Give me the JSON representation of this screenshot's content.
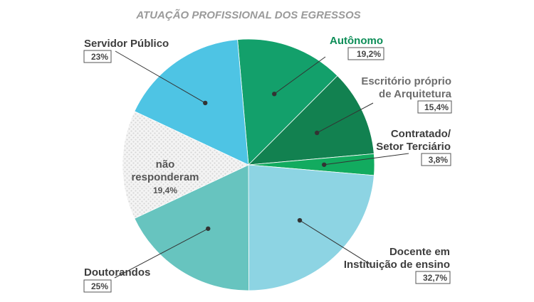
{
  "chart_data": {
    "type": "pie",
    "title": "ATUAÇÃO PROFISSIONAL DOS EGRESSOS",
    "slices": [
      {
        "label": "Autônomo",
        "display": "19,2%",
        "color": "#13a06b",
        "label_color": "#0c8d57"
      },
      {
        "label": "Escritório próprio de Arquitetura",
        "display": "15,4%",
        "color": "#128150",
        "label_color": "#6d6d6d"
      },
      {
        "label": "Contratado/ Setor Terciário",
        "display": "3,8%",
        "color": "#12ab5f",
        "label_color": "#3d3d3d"
      },
      {
        "label": "Docente em Instituição de ensino",
        "display": "32,7%",
        "color": "#8dd4e3",
        "label_color": "#3d3d3d"
      },
      {
        "label": "Doutorandos",
        "display": "25%",
        "color": "#67c4bf",
        "label_color": "#3d3d3d"
      },
      {
        "label": "não responderam",
        "display": "19,4%",
        "color": "#f2f2f2",
        "label_color": "#555555",
        "pattern": "dotted"
      },
      {
        "label": "Servidor Público",
        "display": "23%",
        "color": "#4ec4e4",
        "label_color": "#3d3d3d"
      }
    ],
    "legend": "none"
  }
}
